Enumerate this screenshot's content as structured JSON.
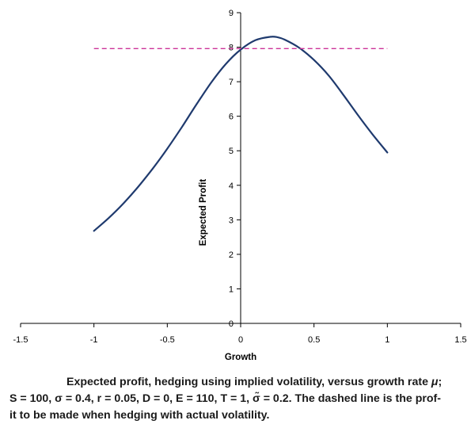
{
  "chart_data": {
    "type": "line",
    "title": "",
    "xlabel": "Growth",
    "ylabel": "Expected Profit",
    "xlim": [
      -1.5,
      1.5
    ],
    "ylim": [
      0,
      9
    ],
    "x_ticks": [
      "-1.5",
      "-1",
      "-0.5",
      "0",
      "0.5",
      "1",
      "1.5"
    ],
    "x_tick_values": [
      -1.5,
      -1,
      -0.5,
      0,
      0.5,
      1,
      1.5
    ],
    "y_ticks": [
      "0",
      "1",
      "2",
      "3",
      "4",
      "5",
      "6",
      "7",
      "8",
      "9"
    ],
    "y_tick_values": [
      0,
      1,
      2,
      3,
      4,
      5,
      6,
      7,
      8,
      9
    ],
    "grid": false,
    "legend": "none",
    "series": [
      {
        "style": "solid",
        "color": "#1f3a6e",
        "x": [
          -1.0,
          -0.9,
          -0.8,
          -0.7,
          -0.6,
          -0.5,
          -0.4,
          -0.3,
          -0.2,
          -0.1,
          0.0,
          0.1,
          0.2,
          0.25,
          0.3,
          0.4,
          0.5,
          0.6,
          0.7,
          0.8,
          0.9,
          1.0
        ],
        "y": [
          2.68,
          3.05,
          3.47,
          3.95,
          4.48,
          5.06,
          5.69,
          6.35,
          6.98,
          7.52,
          7.93,
          8.2,
          8.3,
          8.29,
          8.22,
          7.98,
          7.63,
          7.18,
          6.62,
          6.03,
          5.47,
          4.95
        ]
      },
      {
        "style": "dashed",
        "color": "#cc3399",
        "x": [
          -1.0,
          1.0
        ],
        "y": [
          7.96,
          7.96
        ]
      }
    ]
  },
  "caption": {
    "line1_pre": "Expected profit, hedging using implied volatility, versus growth rate ",
    "line1_mu": "μ",
    "line1_post": ";",
    "line2": "S = 100, σ  = 0.4, r = 0.05, D = 0, E = 110, T = 1, σ̃  = 0.2. The dashed line is the prof-",
    "line3": "it to be made when hedging with actual volatility."
  }
}
